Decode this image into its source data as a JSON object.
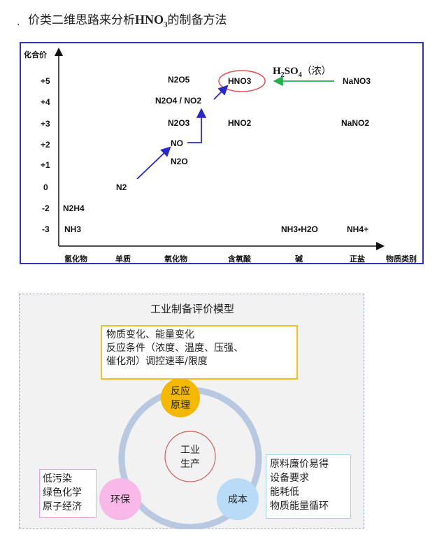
{
  "heading": {
    "bullet": "·",
    "text_prefix": "价类二维思路来分析",
    "formula": "HNO",
    "subscript": "3",
    "text_suffix": "的制备方法"
  },
  "chart": {
    "y_axis_label": "化合价",
    "x_axis_label": "物质类别",
    "y_ticks": [
      "+5",
      "+4",
      "+3",
      "+2",
      "+1",
      "0",
      "-2",
      "-3"
    ],
    "categories": [
      "氢化物",
      "单质",
      "氧化物",
      "含氧酸",
      "碱",
      "正盐"
    ],
    "species": {
      "n2h4": "N2H4",
      "nh3": "NH3",
      "n2": "N2",
      "n2o": "N2O",
      "no": "NO",
      "n2o3": "N2O3",
      "n2o4_no2": "N2O4 / NO2",
      "n2o5": "N2O5",
      "hno3": "HNO3",
      "hno2": "HNO2",
      "nh3h2o": "NH3•H2O",
      "nano3": "NaNO3",
      "nano2": "NaNO2",
      "nh4": "NH4+"
    },
    "h2so4_label": {
      "formula": "H",
      "sub1": "2",
      "mid": "SO",
      "sub2": "4",
      "note": "（浓）"
    },
    "colors": {
      "border": "#3232b4",
      "blue_arrow": "#2828c8",
      "green_arrow": "#20b050",
      "hno3_circle": "#e05050"
    }
  },
  "model": {
    "title": "工业制备评价模型",
    "principle_lines": [
      "物质变化、能量变化",
      "反应条件（浓度、温度、压强、",
      "催化剂）调控速率/限度"
    ],
    "env_lines": [
      "低污染",
      "绿色化学",
      "原子经济"
    ],
    "cost_lines": [
      "原料廉价易得",
      "设备要求",
      "能耗低",
      "物质能量循环"
    ],
    "nodes": {
      "principle": [
        "反应",
        "原理"
      ],
      "center": [
        "工业",
        "生产"
      ],
      "env": "环保",
      "cost": "成本"
    },
    "colors": {
      "principle": "#f5b800",
      "env": "#f8b8e8",
      "cost": "#b8dcf8",
      "ring": "#b8c8e0"
    }
  }
}
